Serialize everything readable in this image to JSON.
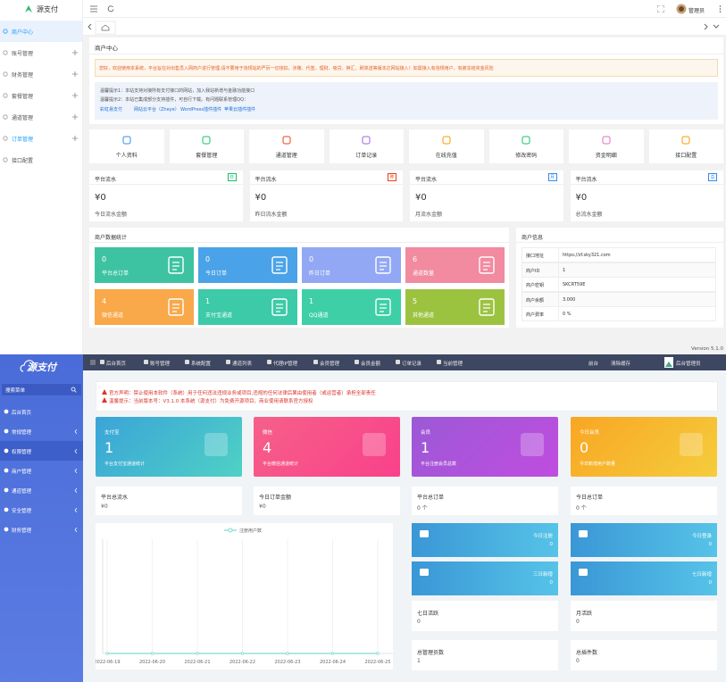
{
  "top": {
    "logo": "源支付",
    "admin": "管理员",
    "menu": [
      "商户中心",
      "账号管理",
      "财务管理",
      "套餐管理",
      "通道管理",
      "订单管理",
      "接口配置"
    ],
    "panel_title": "商户中心",
    "warning": "您好，欢迎使用本系统，平台旨在对出售员入网商户进行管理,请不要用于违规站的严厉一切违扣，涉赌、代签、理财、吸贷、换汇、刷单送等版本达网站接入！如需接入有违规用户，有被冻结资金风险",
    "tips": [
      "温馨提示1：本站支持对接所有支付接口的网站，加入我站新增与金融功能接口",
      "温馨提示2：本站已集成部分支持插件，可自行下载。有问题联系管理QQ："
    ],
    "links": [
      "彩虹易支付",
      "网站云平台（Zheye）",
      "WordPress插件插件",
      "苹果云插件插件"
    ],
    "shortcuts": [
      "个人资料",
      "套餐管理",
      "通道管理",
      "订单记录",
      "在线充值",
      "修改密码",
      "资金明细",
      "接口配置"
    ],
    "stats": [
      {
        "title": "平台流水",
        "badge": "日",
        "amount": "¥0",
        "caption": "今日流水金额"
      },
      {
        "title": "平台流水",
        "badge": "昨",
        "amount": "¥0",
        "caption": "昨日流水金额"
      },
      {
        "title": "平台流水",
        "badge": "月",
        "amount": "¥0",
        "caption": "月流水金额"
      },
      {
        "title": "平台流水",
        "badge": "总",
        "amount": "¥0",
        "caption": "总流水金额"
      }
    ],
    "stats_title": "商户数据统计",
    "tiles": [
      {
        "value": 0,
        "label": "平台总订单"
      },
      {
        "value": 0,
        "label": "今日订单"
      },
      {
        "value": 0,
        "label": "昨日订单"
      },
      {
        "value": 6,
        "label": "通道数量"
      },
      {
        "value": 4,
        "label": "微信通道"
      },
      {
        "value": 1,
        "label": "支付宝通道"
      },
      {
        "value": 1,
        "label": "QQ通道"
      },
      {
        "value": 5,
        "label": "其他通道"
      }
    ],
    "info_title": "商户信息",
    "info_rows": [
      [
        "接口地址",
        "https://zf.sky321.com"
      ],
      [
        "商户ID",
        "1"
      ],
      [
        "商户密钥",
        "SKCRT59E"
      ],
      [
        "商户余额",
        "3.000"
      ],
      [
        "商户费率",
        "0 %"
      ]
    ],
    "version": "Version 5.1.0"
  },
  "bottom": {
    "logo": "源支付",
    "search": "搜索菜单",
    "menu": [
      "后台首页",
      "常规管理",
      "权限管理",
      "商户管理",
      "通道管理",
      "安全管理",
      "财务管理"
    ],
    "nav": [
      "后台首页",
      "账号管理",
      "系统配置",
      "通道列表",
      "代理IP管理",
      "会员管理",
      "会员金额",
      "订单记录",
      "当前管理"
    ],
    "nav_right": [
      "前台",
      "清除缓存",
      "后台管理员"
    ],
    "notices": [
      "官方声明：禁止使用本软件（系统）用于任何违法违规业务或项目,违规的任何法律后果由使用者（或运营者）承担全部责任",
      "温馨提示：当前版本号：V3.1.0 本系统（源支付）为免费开源项目，商业使用请联系官方授权"
    ],
    "cards": [
      {
        "title": "支付宝",
        "value": 1,
        "caption": "平台支付宝通道统计"
      },
      {
        "title": "微信",
        "value": 4,
        "caption": "平台微信通道统计"
      },
      {
        "title": "会员",
        "value": 1,
        "caption": "平台注册会员总数"
      },
      {
        "title": "今日会员",
        "value": 0,
        "caption": "今日新增用户数量"
      }
    ],
    "totals": [
      {
        "label": "平台总流水",
        "value": "¥0"
      },
      {
        "label": "今日订单金额",
        "value": "¥0"
      },
      {
        "label": "平台总订单",
        "value": "0 个"
      },
      {
        "label": "今日总订单",
        "value": "0 个"
      }
    ],
    "chart": {
      "type": "line",
      "categories": [
        "2022-06-19",
        "2022-06-20",
        "2022-06-21",
        "2022-06-22",
        "2022-06-23",
        "2022-06-24",
        "2022-06-25"
      ],
      "ylim": [
        0,
        1
      ],
      "series": [
        {
          "name": "注册用户数",
          "color": "#5fd3c7",
          "values": [
            0,
            0,
            0,
            0,
            0,
            0,
            0
          ]
        }
      ]
    },
    "blue_cards": [
      {
        "label": "今日注册",
        "value": 0
      },
      {
        "label": "今日登录",
        "value": 0
      },
      {
        "label": "三日新增",
        "value": 0
      },
      {
        "label": "七日新增",
        "value": 0
      }
    ],
    "white_cards": [
      {
        "label": "七日活跃",
        "value": 0
      },
      {
        "label": "月活跃",
        "value": 0
      },
      {
        "label": "总管理员数",
        "value": 1
      },
      {
        "label": "总插件数",
        "value": 0
      }
    ]
  }
}
